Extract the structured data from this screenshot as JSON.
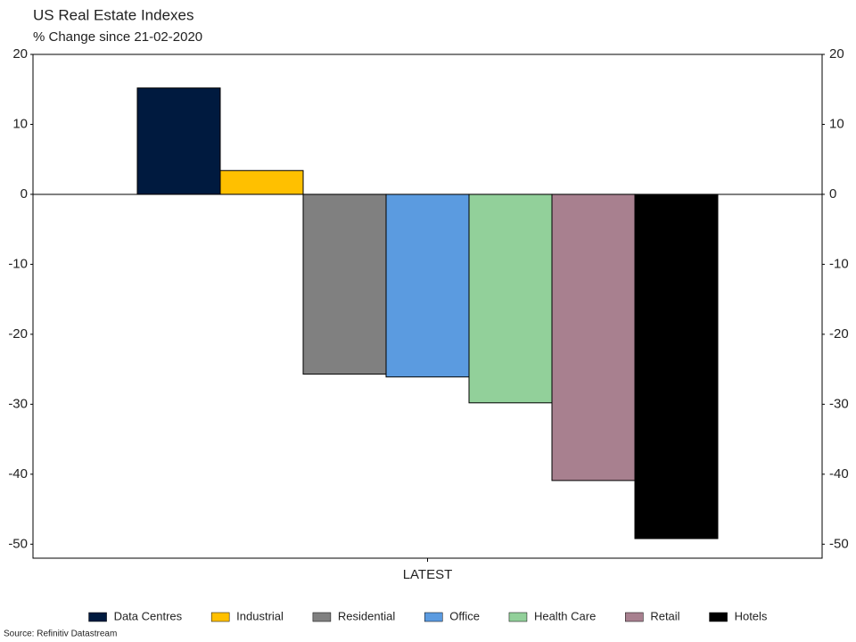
{
  "chart_data": {
    "type": "bar",
    "title": "US Real Estate Indexes",
    "subtitle": "% Change since 21-02-2020",
    "source": "Source: Refinitiv Datastream",
    "categories": [
      "LATEST"
    ],
    "series": [
      {
        "name": "Data Centres",
        "color": "#001a3f",
        "values": [
          15.2
        ]
      },
      {
        "name": "Industrial",
        "color": "#ffc000",
        "values": [
          3.4
        ]
      },
      {
        "name": "Residential",
        "color": "#808080",
        "values": [
          -25.7
        ]
      },
      {
        "name": "Office",
        "color": "#5b9be0",
        "values": [
          -26.1
        ]
      },
      {
        "name": "Health Care",
        "color": "#92d09a",
        "values": [
          -29.8
        ]
      },
      {
        "name": "Retail",
        "color": "#a8808f",
        "values": [
          -40.9
        ]
      },
      {
        "name": "Hotels",
        "color": "#000000",
        "values": [
          -49.2
        ]
      }
    ],
    "ylim": [
      -52,
      20
    ],
    "yticks": [
      20,
      10,
      0,
      -10,
      -20,
      -30,
      -40,
      -50
    ],
    "y2lim": [
      -52,
      20
    ],
    "y2ticks": [
      20,
      10,
      0,
      -10,
      -20,
      -30,
      -40,
      -50
    ],
    "legend": "bottom",
    "grid": false
  }
}
